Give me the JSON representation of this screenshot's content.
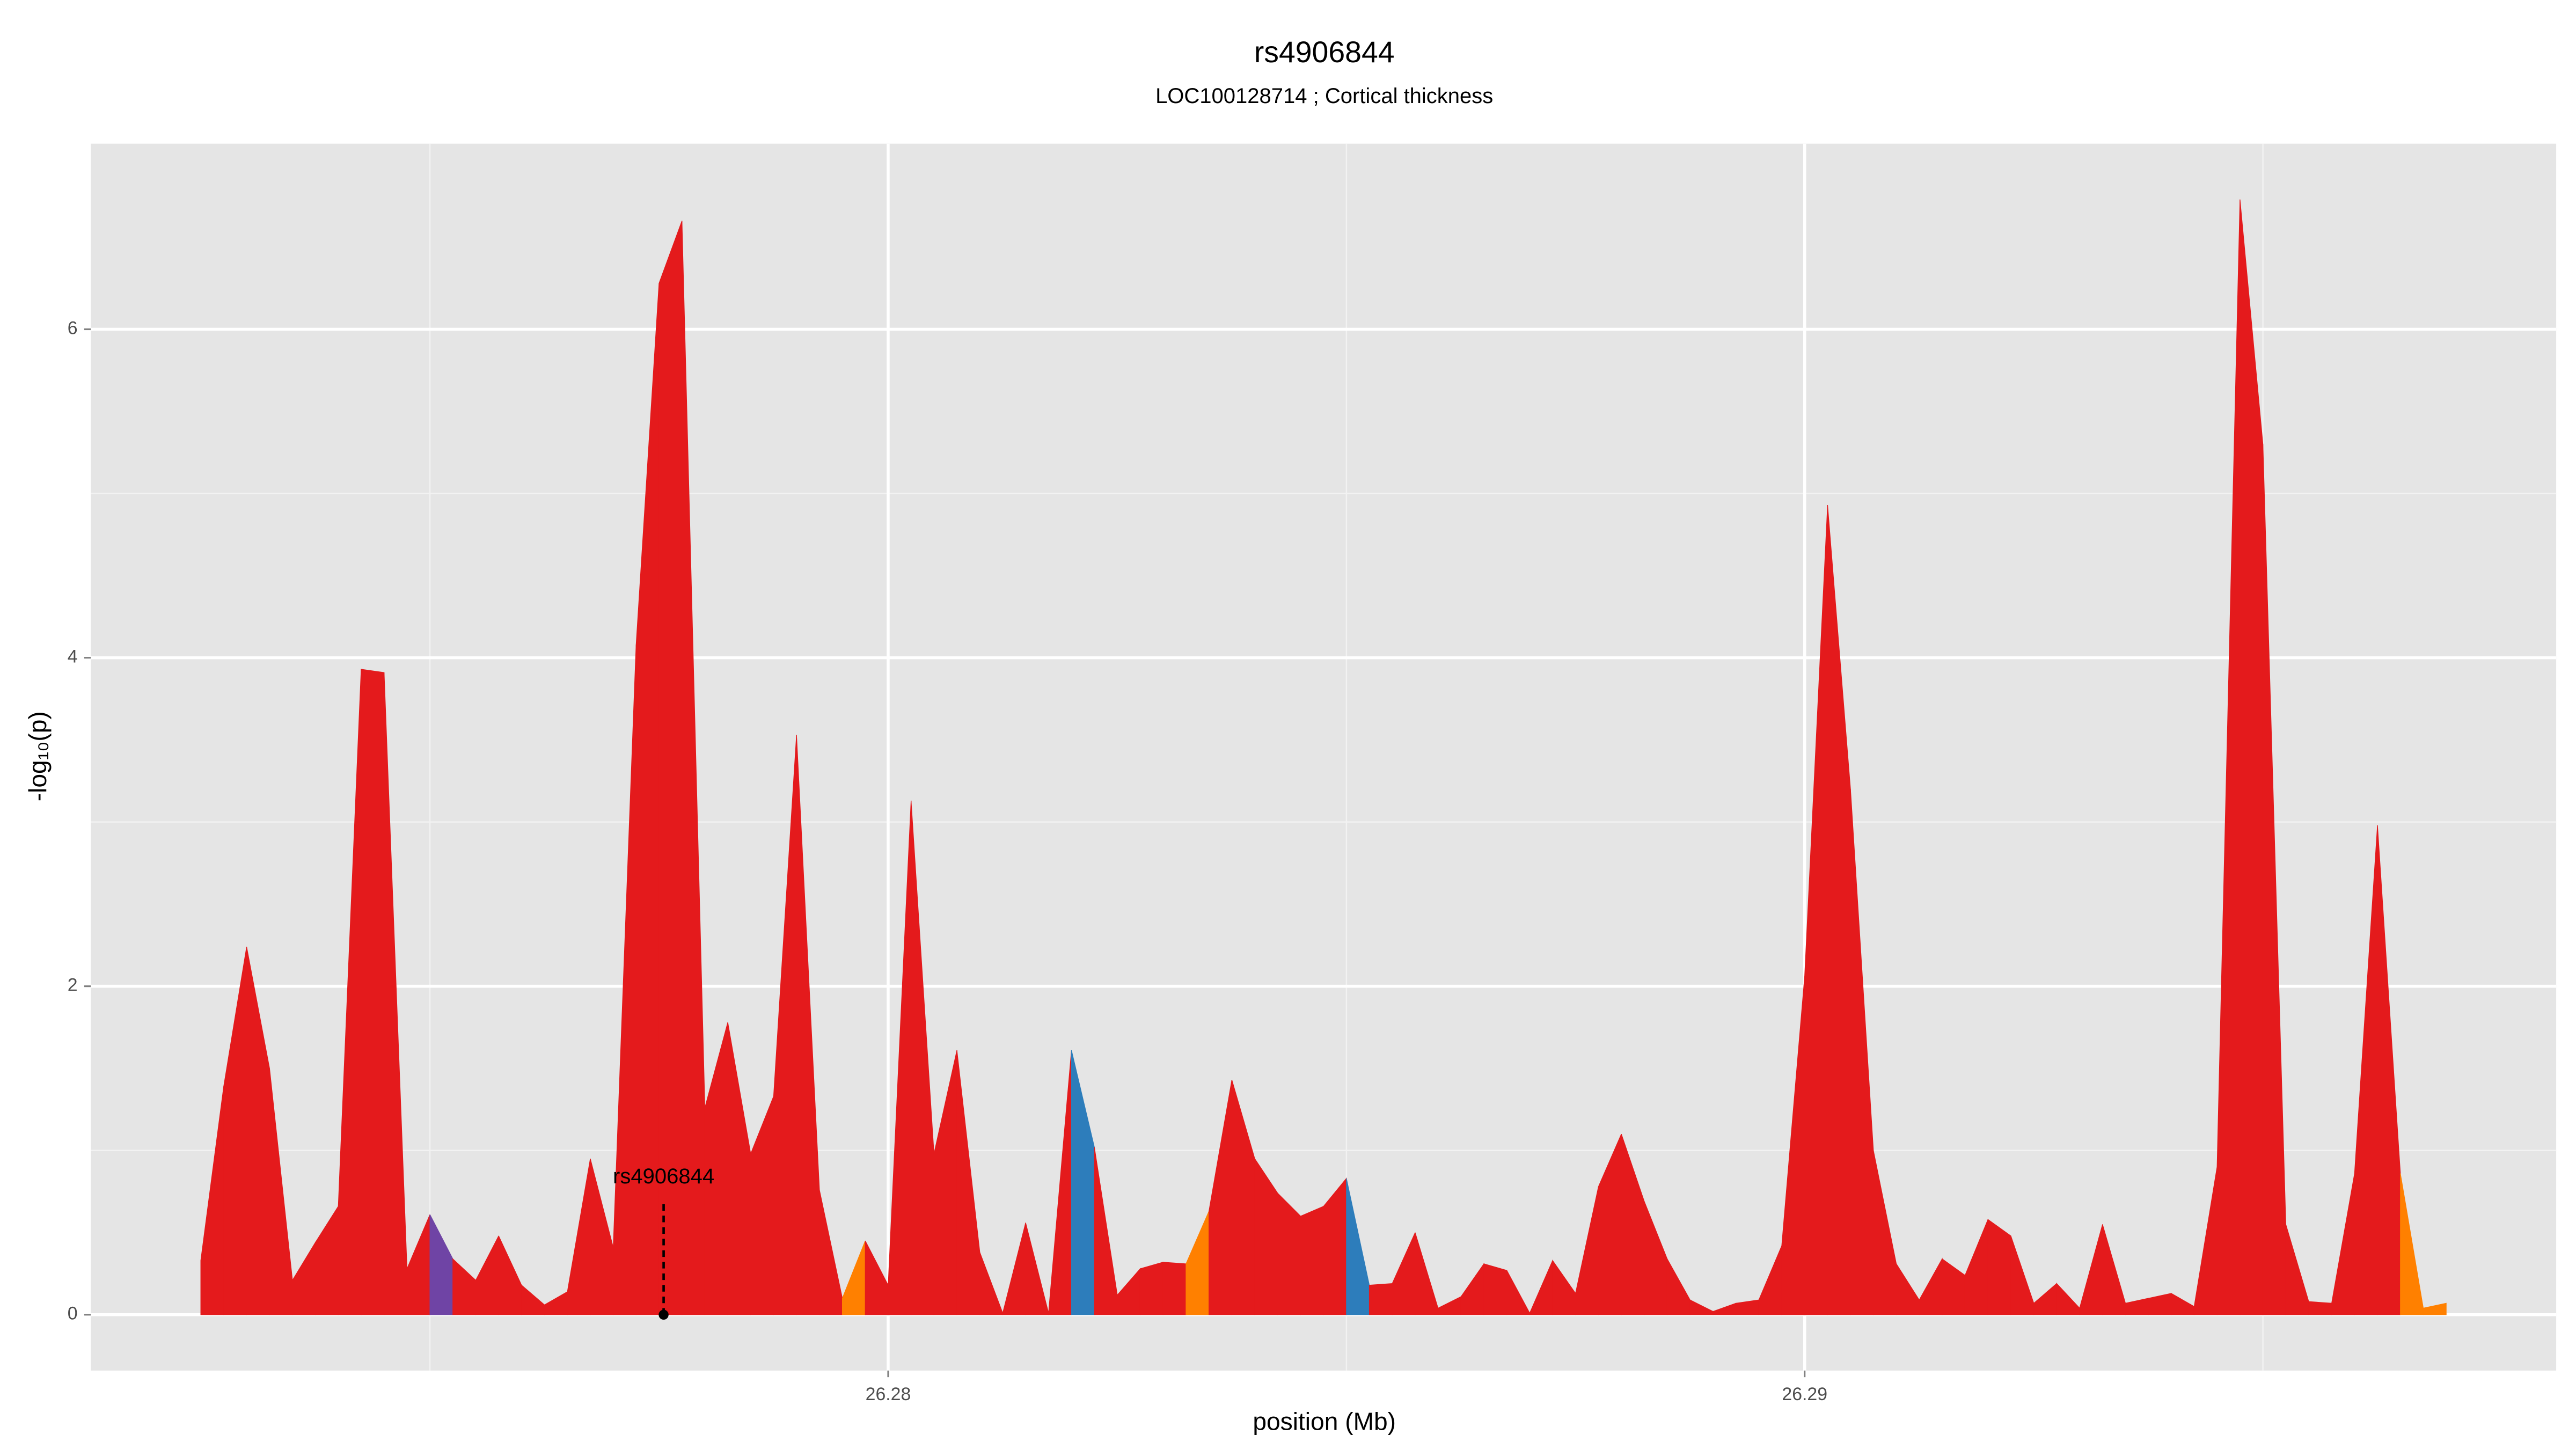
{
  "chart_data": {
    "type": "area",
    "title": "rs4906844",
    "subtitle": "LOC100128714 ; Cortical thickness",
    "x_label": "position (Mb)",
    "y_label": "-log₁₀(p)",
    "x": [
      26.2725,
      26.27275,
      26.273,
      26.27325,
      26.2735,
      26.27375,
      26.274,
      26.27425,
      26.2745,
      26.27475,
      26.275,
      26.27525,
      26.2755,
      26.27575,
      26.276,
      26.27625,
      26.2765,
      26.27675,
      26.277,
      26.27725,
      26.2775,
      26.27775,
      26.278,
      26.27825,
      26.2785,
      26.27875,
      26.279,
      26.27925,
      26.2795,
      26.27975,
      26.28,
      26.28025,
      26.2805,
      26.28075,
      26.281,
      26.28125,
      26.2815,
      26.28175,
      26.282,
      26.28225,
      26.2825,
      26.28275,
      26.283,
      26.28325,
      26.2835,
      26.28375,
      26.284,
      26.28425,
      26.2845,
      26.28475,
      26.285,
      26.28525,
      26.2855,
      26.28575,
      26.286,
      26.28625,
      26.2865,
      26.28675,
      26.287,
      26.28725,
      26.2875,
      26.28775,
      26.288,
      26.28825,
      26.2885,
      26.28875,
      26.289,
      26.28925,
      26.2895,
      26.28975,
      26.29,
      26.29025,
      26.2905,
      26.29075,
      26.291,
      26.29125,
      26.2915,
      26.29175,
      26.292,
      26.29225,
      26.2925,
      26.29275,
      26.293,
      26.29325,
      26.2935,
      26.29375,
      26.294,
      26.29425,
      26.2945,
      26.29475,
      26.295,
      26.29525,
      26.2955,
      26.29575,
      26.296,
      26.29625,
      26.2965,
      26.29675,
      26.297
    ],
    "values": [
      0.33,
      1.39,
      2.24,
      1.5,
      0.21,
      0.44,
      0.66,
      3.93,
      3.91,
      0.28,
      0.61,
      0.34,
      0.21,
      0.48,
      0.18,
      0.06,
      0.14,
      0.95,
      0.41,
      4.08,
      6.28,
      6.66,
      1.26,
      1.78,
      0.98,
      1.33,
      3.53,
      0.76,
      0.1,
      0.45,
      0.18,
      3.13,
      0.98,
      1.61,
      0.38,
      0.01,
      0.56,
      0.01,
      1.61,
      1.02,
      0.12,
      0.28,
      0.32,
      0.31,
      0.63,
      1.43,
      0.95,
      0.74,
      0.6,
      0.66,
      0.83,
      0.18,
      0.19,
      0.5,
      0.04,
      0.11,
      0.31,
      0.27,
      0.01,
      0.33,
      0.13,
      0.78,
      1.1,
      0.69,
      0.34,
      0.09,
      0.02,
      0.07,
      0.09,
      0.42,
      2.06,
      4.93,
      3.2,
      1.0,
      0.31,
      0.09,
      0.34,
      0.24,
      0.58,
      0.48,
      0.07,
      0.19,
      0.04,
      0.55,
      0.07,
      0.1,
      0.13,
      0.05,
      0.9,
      6.79,
      5.3,
      0.55,
      0.08,
      0.07,
      0.86,
      2.98,
      0.86,
      0.04,
      0.07
    ],
    "segment_colors": [
      "#e41a1c",
      "#e41a1c",
      "#e41a1c",
      "#e41a1c",
      "#e41a1c",
      "#e41a1c",
      "#e41a1c",
      "#e41a1c",
      "#e41a1c",
      "#e41a1c",
      "#6f44a5",
      "#e41a1c",
      "#e41a1c",
      "#e41a1c",
      "#e41a1c",
      "#e41a1c",
      "#e41a1c",
      "#e41a1c",
      "#e41a1c",
      "#e41a1c",
      "#e41a1c",
      "#e41a1c",
      "#e41a1c",
      "#e41a1c",
      "#e41a1c",
      "#e41a1c",
      "#e41a1c",
      "#e41a1c",
      "#ff8000",
      "#e41a1c",
      "#e41a1c",
      "#e41a1c",
      "#e41a1c",
      "#e41a1c",
      "#e41a1c",
      "#e41a1c",
      "#e41a1c",
      "#e41a1c",
      "#2d7dbb",
      "#e41a1c",
      "#e41a1c",
      "#e41a1c",
      "#e41a1c",
      "#ff8000",
      "#e41a1c",
      "#e41a1c",
      "#e41a1c",
      "#e41a1c",
      "#e41a1c",
      "#e41a1c",
      "#2d7dbb",
      "#e41a1c",
      "#e41a1c",
      "#e41a1c",
      "#e41a1c",
      "#e41a1c",
      "#e41a1c",
      "#e41a1c",
      "#e41a1c",
      "#e41a1c",
      "#e41a1c",
      "#e41a1c",
      "#e41a1c",
      "#e41a1c",
      "#e41a1c",
      "#e41a1c",
      "#e41a1c",
      "#e41a1c",
      "#e41a1c",
      "#e41a1c",
      "#e41a1c",
      "#e41a1c",
      "#e41a1c",
      "#e41a1c",
      "#e41a1c",
      "#e41a1c",
      "#e41a1c",
      "#e41a1c",
      "#e41a1c",
      "#e41a1c",
      "#e41a1c",
      "#e41a1c",
      "#e41a1c",
      "#e41a1c",
      "#e41a1c",
      "#e41a1c",
      "#e41a1c",
      "#e41a1c",
      "#e41a1c",
      "#e41a1c",
      "#e41a1c",
      "#e41a1c",
      "#e41a1c",
      "#e41a1c",
      "#e41a1c",
      "#e41a1c",
      "#ff8000",
      "#ff8000"
    ],
    "annotation": {
      "label": "rs4906844",
      "x": 26.27755,
      "y": 0
    },
    "xlim": [
      26.2713,
      26.2982
    ],
    "ylim": [
      -0.34,
      7.13
    ],
    "xticks": [
      26.28,
      26.29
    ],
    "yticks": [
      0,
      2,
      4,
      6
    ],
    "x_minor_ticks": [
      26.275,
      26.285,
      26.295
    ],
    "y_minor_ticks": [
      1,
      3,
      5
    ],
    "grid": true
  }
}
